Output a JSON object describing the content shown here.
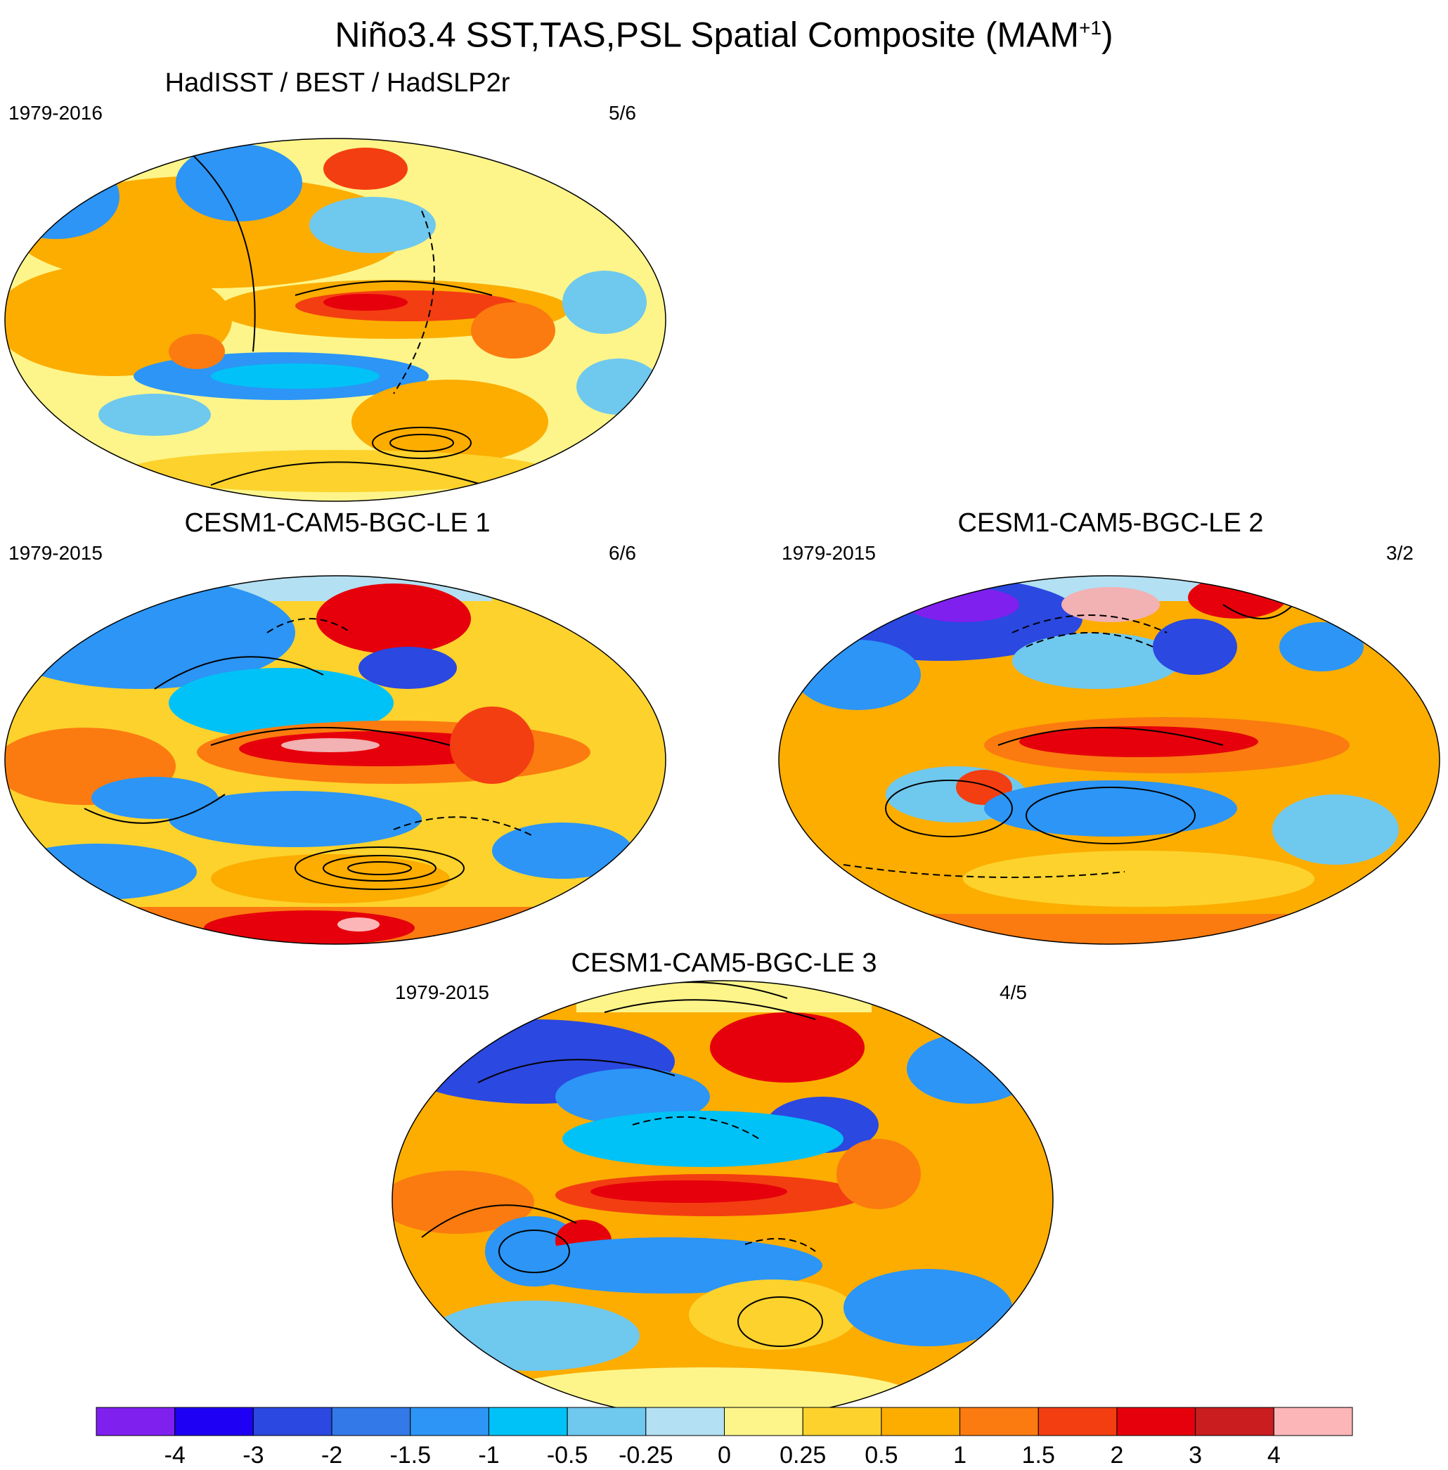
{
  "title": {
    "main": "Niño3.4 SST,TAS,PSL Spatial Composite (MAM",
    "superscript": "+1",
    "close": ")"
  },
  "panels": [
    {
      "id": "obs",
      "title": "HadISST / BEST / HadSLP2r",
      "years": "1979-2016",
      "ratio": "5/6"
    },
    {
      "id": "le1",
      "title": "CESM1-CAM5-BGC-LE 1",
      "years": "1979-2015",
      "ratio": "6/6"
    },
    {
      "id": "le2",
      "title": "CESM1-CAM5-BGC-LE 2",
      "years": "1979-2015",
      "ratio": "3/2"
    },
    {
      "id": "le3",
      "title": "CESM1-CAM5-BGC-LE 3",
      "years": "1979-2015",
      "ratio": "4/5"
    }
  ],
  "colorbar": {
    "labels": [
      "-4",
      "-3",
      "-2",
      "-1.5",
      "-1",
      "-0.5",
      "-0.25",
      "0",
      "0.25",
      "0.5",
      "1",
      "1.5",
      "2",
      "3",
      "4"
    ],
    "colors": [
      "#7f20ef",
      "#1e00f5",
      "#2b48e0",
      "#3379e8",
      "#2c95f6",
      "#00c2f7",
      "#6fc8ee",
      "#b3e0f2",
      "#fdf58a",
      "#fdd22c",
      "#fcad00",
      "#fb7b10",
      "#f33e12",
      "#e6000b",
      "#c91d1f",
      "#fdb6b8"
    ]
  },
  "colors": {
    "land_outline": "#ffffff",
    "psl_contour": "#000000"
  }
}
